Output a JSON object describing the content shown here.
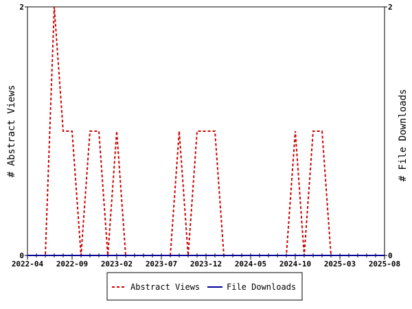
{
  "chart_data": {
    "type": "line",
    "ylabel_left": "# Abstract Views",
    "ylabel_right": "# File Downloads",
    "x_ticks": [
      "2022-04",
      "2022-09",
      "2023-02",
      "2023-07",
      "2023-12",
      "2024-05",
      "2024-10",
      "2025-03",
      "2025-08"
    ],
    "x_range": [
      "2022-04",
      "2025-08"
    ],
    "y_left_range": [
      0,
      2
    ],
    "y_right_range": [
      0,
      2
    ],
    "y_left_ticks": [
      "0",
      "2"
    ],
    "y_right_ticks": [
      "0",
      "2"
    ],
    "grid": false,
    "legend_position": "bottom",
    "series": [
      {
        "name": "Abstract Views",
        "color": "#cc0000",
        "style": "dashed",
        "points": [
          [
            "2022-04",
            0
          ],
          [
            "2022-05",
            0
          ],
          [
            "2022-06",
            0
          ],
          [
            "2022-07",
            2
          ],
          [
            "2022-08",
            1
          ],
          [
            "2022-09",
            1
          ],
          [
            "2022-10",
            0
          ],
          [
            "2022-11",
            1
          ],
          [
            "2022-12",
            1
          ],
          [
            "2023-01",
            0
          ],
          [
            "2023-02",
            1
          ],
          [
            "2023-03",
            0
          ],
          [
            "2023-04",
            0
          ],
          [
            "2023-05",
            0
          ],
          [
            "2023-06",
            0
          ],
          [
            "2023-07",
            0
          ],
          [
            "2023-08",
            0
          ],
          [
            "2023-09",
            1
          ],
          [
            "2023-10",
            0
          ],
          [
            "2023-11",
            1
          ],
          [
            "2023-12",
            1
          ],
          [
            "2024-01",
            1
          ],
          [
            "2024-02",
            0
          ],
          [
            "2024-03",
            0
          ],
          [
            "2024-04",
            0
          ],
          [
            "2024-05",
            0
          ],
          [
            "2024-06",
            0
          ],
          [
            "2024-07",
            0
          ],
          [
            "2024-08",
            0
          ],
          [
            "2024-09",
            0
          ],
          [
            "2024-10",
            1
          ],
          [
            "2024-11",
            0
          ],
          [
            "2024-12",
            1
          ],
          [
            "2025-01",
            1
          ],
          [
            "2025-02",
            0
          ],
          [
            "2025-03",
            0
          ],
          [
            "2025-04",
            0
          ],
          [
            "2025-05",
            0
          ],
          [
            "2025-06",
            0
          ],
          [
            "2025-07",
            0
          ],
          [
            "2025-08",
            0
          ]
        ]
      },
      {
        "name": "File Downloads",
        "color": "#000099",
        "style": "solid",
        "points": [
          [
            "2022-04",
            0
          ],
          [
            "2025-08",
            0
          ]
        ]
      }
    ]
  }
}
